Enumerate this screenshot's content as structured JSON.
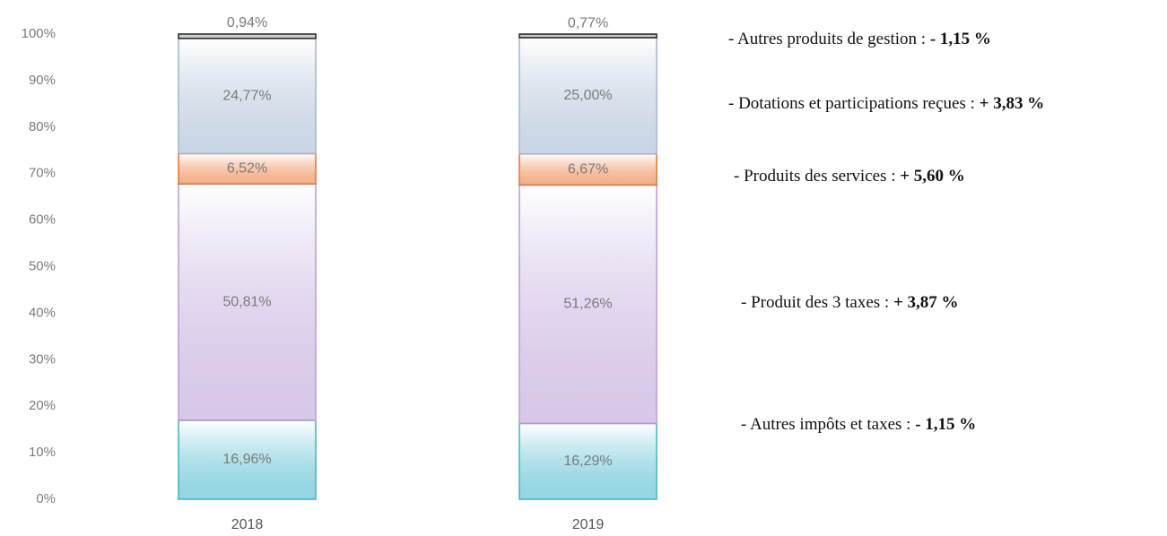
{
  "chart_data": {
    "type": "stacked_bar",
    "categories": [
      "2018",
      "2019"
    ],
    "series": [
      {
        "color": "#3bb3c9",
        "values": [
          16.96,
          16.29
        ],
        "value_labels": [
          "16,96%",
          "16,29%"
        ]
      },
      {
        "color": "#b69ad6",
        "values": [
          50.81,
          51.26
        ],
        "value_labels": [
          "50,81%",
          "51,26%"
        ]
      },
      {
        "color": "#e8702a",
        "values": [
          6.52,
          6.67
        ],
        "value_labels": [
          "6,52%",
          "6,67%"
        ]
      },
      {
        "color": "#9fb4cf",
        "values": [
          24.77,
          25.0
        ],
        "value_labels": [
          "24,77%",
          "25,00%"
        ]
      },
      {
        "color": "#222222",
        "values": [
          0.94,
          0.77
        ],
        "value_labels": [
          "0,94%",
          "0,77%"
        ]
      }
    ],
    "ylim": [
      0,
      100
    ],
    "yticks": [
      {
        "value": 0,
        "label": "0%"
      },
      {
        "value": 10,
        "label": "10%"
      },
      {
        "value": 20,
        "label": "20%"
      },
      {
        "value": 30,
        "label": "30%"
      },
      {
        "value": 40,
        "label": "40%"
      },
      {
        "value": 50,
        "label": "50%"
      },
      {
        "value": 60,
        "label": "60%"
      },
      {
        "value": 70,
        "label": "70%"
      },
      {
        "value": 80,
        "label": "80%"
      },
      {
        "value": 90,
        "label": "90%"
      },
      {
        "value": 100,
        "label": "100%"
      }
    ],
    "annotations": [
      {
        "text": "- Autres produits de gestion : ",
        "change": "- 1,15 %"
      },
      {
        "text": "- Dotations et participations reçues : ",
        "change": "+ 3,83 %"
      },
      {
        "text": "- Produits des services : ",
        "change": "+ 5,60 %"
      },
      {
        "text": "- Produit des 3 taxes : ",
        "change": "+ 3,87 %"
      },
      {
        "text": "- Autres impôts et taxes : ",
        "change": "- 1,15 %"
      }
    ]
  }
}
